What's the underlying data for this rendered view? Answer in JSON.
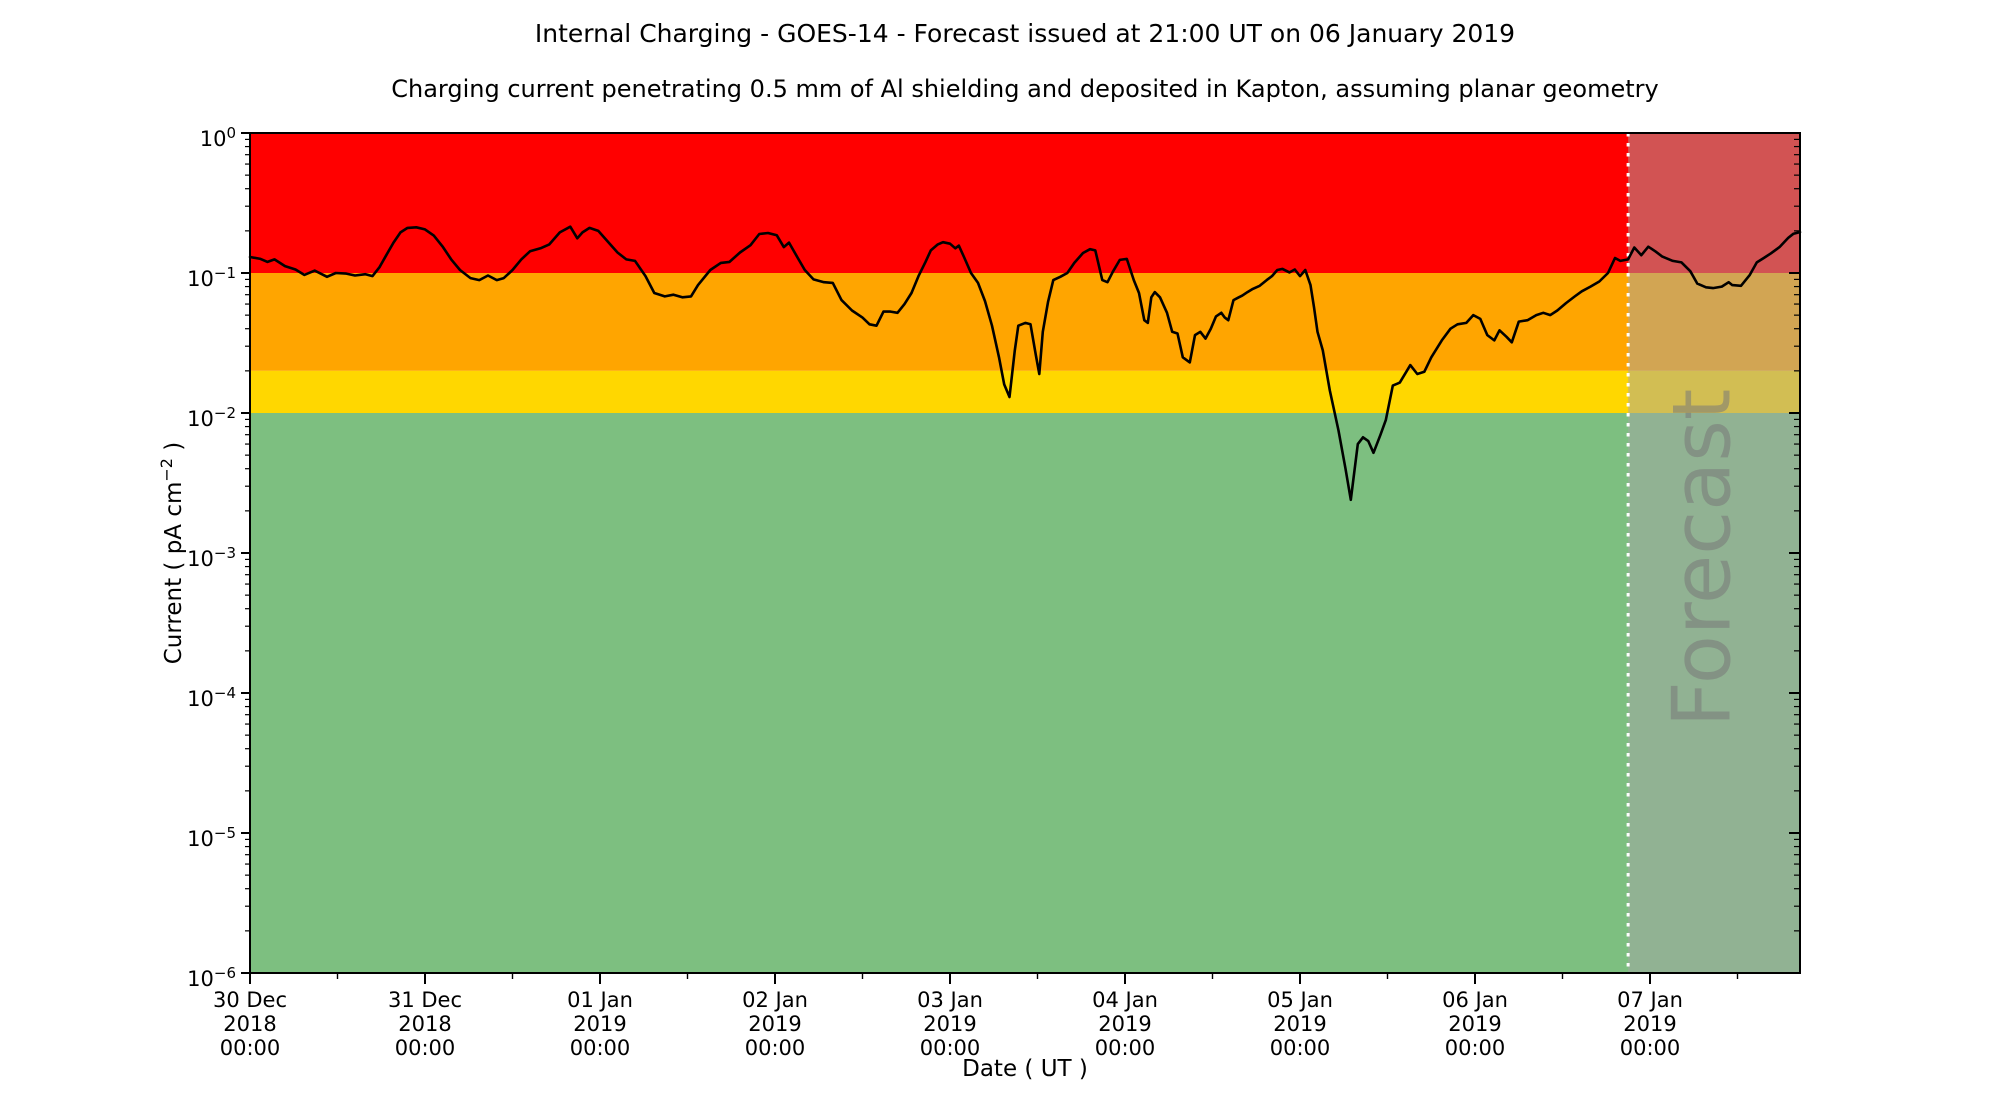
{
  "title": "Internal Charging - GOES-14 - Forecast issued at 21:00 UT on 06 January 2019",
  "subtitle": "Charging current penetrating 0.5 mm of Al shielding and deposited in Kapton, assuming planar geometry",
  "x_axis": {
    "label": "Date ( UT )",
    "ticks": [
      {
        "date": "30 Dec",
        "year": "2018",
        "time": "00:00"
      },
      {
        "date": "31 Dec",
        "year": "2018",
        "time": "00:00"
      },
      {
        "date": "01 Jan",
        "year": "2019",
        "time": "00:00"
      },
      {
        "date": "02 Jan",
        "year": "2019",
        "time": "00:00"
      },
      {
        "date": "03 Jan",
        "year": "2019",
        "time": "00:00"
      },
      {
        "date": "04 Jan",
        "year": "2019",
        "time": "00:00"
      },
      {
        "date": "05 Jan",
        "year": "2019",
        "time": "00:00"
      },
      {
        "date": "06 Jan",
        "year": "2019",
        "time": "00:00"
      },
      {
        "date": "07 Jan",
        "year": "2019",
        "time": "00:00"
      }
    ]
  },
  "y_axis": {
    "label_prefix": "Current ( pA cm",
    "label_sup": "−2",
    "label_suffix": " )",
    "label_plain": "Current ( pA cm⁻² )",
    "tick_exponents": [
      0,
      -1,
      -2,
      -3,
      -4,
      -5,
      -6
    ]
  },
  "bands": [
    {
      "name": "band-red-alert",
      "color": "#ff0000",
      "min": 0.1,
      "max": 1.0
    },
    {
      "name": "band-orange-warning",
      "color": "#ffa500",
      "min": 0.02,
      "max": 0.1
    },
    {
      "name": "band-yellow-caution",
      "color": "#ffd700",
      "min": 0.01,
      "max": 0.02
    },
    {
      "name": "band-green-quiet",
      "color": "#7dbf80",
      "min": 1e-06,
      "max": 0.01
    }
  ],
  "forecast": {
    "label": "Forecast",
    "start_day": 7.875,
    "start_label": "06 Jan 2019 21:00 UT",
    "overlay_color": "#a5a5a5",
    "overlay_opacity": 0.5,
    "divider_color": "#ffffff",
    "text_color": "#787878",
    "text_opacity": 0.55
  },
  "chart_data": {
    "type": "line",
    "title": "Internal Charging - GOES-14 - Forecast issued at 21:00 UT on 06 January 2019",
    "xlabel": "Date ( UT )",
    "ylabel": "Current ( pA cm^-2 )",
    "y_scale": "log",
    "ylim": [
      1e-06,
      1.0
    ],
    "x_unit": "days since 30 Dec 2018 00:00 UT",
    "x_start": "30 Dec 2018 00:00",
    "x_end_day": 8.857,
    "day_tick_labels": [
      "30 Dec 2018 00:00",
      "31 Dec 2018 00:00",
      "01 Jan 2019 00:00",
      "02 Jan 2019 00:00",
      "03 Jan 2019 00:00",
      "04 Jan 2019 00:00",
      "05 Jan 2019 00:00",
      "06 Jan 2019 00:00",
      "07 Jan 2019 00:00"
    ],
    "grid": false,
    "forecast_start_day": 7.875,
    "series": [
      {
        "name": "charging-current",
        "color": "#000000",
        "points": [
          [
            0.0,
            0.13
          ],
          [
            0.06,
            0.126
          ],
          [
            0.1,
            0.12
          ],
          [
            0.14,
            0.125
          ],
          [
            0.2,
            0.112
          ],
          [
            0.26,
            0.106
          ],
          [
            0.31,
            0.097
          ],
          [
            0.37,
            0.104
          ],
          [
            0.44,
            0.094
          ],
          [
            0.49,
            0.1
          ],
          [
            0.55,
            0.099
          ],
          [
            0.6,
            0.096
          ],
          [
            0.66,
            0.098
          ],
          [
            0.7,
            0.095
          ],
          [
            0.74,
            0.11
          ],
          [
            0.78,
            0.135
          ],
          [
            0.82,
            0.165
          ],
          [
            0.86,
            0.195
          ],
          [
            0.9,
            0.21
          ],
          [
            0.95,
            0.212
          ],
          [
            1.0,
            0.205
          ],
          [
            1.05,
            0.185
          ],
          [
            1.1,
            0.155
          ],
          [
            1.15,
            0.125
          ],
          [
            1.2,
            0.105
          ],
          [
            1.26,
            0.092
          ],
          [
            1.31,
            0.089
          ],
          [
            1.36,
            0.096
          ],
          [
            1.41,
            0.089
          ],
          [
            1.45,
            0.092
          ],
          [
            1.5,
            0.105
          ],
          [
            1.55,
            0.125
          ],
          [
            1.6,
            0.143
          ],
          [
            1.66,
            0.15
          ],
          [
            1.71,
            0.16
          ],
          [
            1.77,
            0.195
          ],
          [
            1.83,
            0.214
          ],
          [
            1.87,
            0.177
          ],
          [
            1.9,
            0.195
          ],
          [
            1.94,
            0.21
          ],
          [
            1.99,
            0.2
          ],
          [
            2.05,
            0.165
          ],
          [
            2.1,
            0.14
          ],
          [
            2.15,
            0.125
          ],
          [
            2.2,
            0.122
          ],
          [
            2.26,
            0.095
          ],
          [
            2.31,
            0.072
          ],
          [
            2.37,
            0.068
          ],
          [
            2.42,
            0.07
          ],
          [
            2.47,
            0.067
          ],
          [
            2.52,
            0.068
          ],
          [
            2.56,
            0.082
          ],
          [
            2.63,
            0.105
          ],
          [
            2.69,
            0.118
          ],
          [
            2.74,
            0.12
          ],
          [
            2.8,
            0.14
          ],
          [
            2.86,
            0.158
          ],
          [
            2.91,
            0.19
          ],
          [
            2.96,
            0.193
          ],
          [
            3.01,
            0.186
          ],
          [
            3.05,
            0.153
          ],
          [
            3.08,
            0.165
          ],
          [
            3.13,
            0.128
          ],
          [
            3.17,
            0.105
          ],
          [
            3.22,
            0.09
          ],
          [
            3.28,
            0.086
          ],
          [
            3.33,
            0.085
          ],
          [
            3.38,
            0.064
          ],
          [
            3.44,
            0.054
          ],
          [
            3.5,
            0.048
          ],
          [
            3.54,
            0.043
          ],
          [
            3.58,
            0.042
          ],
          [
            3.62,
            0.053
          ],
          [
            3.66,
            0.053
          ],
          [
            3.7,
            0.052
          ],
          [
            3.74,
            0.06
          ],
          [
            3.78,
            0.072
          ],
          [
            3.82,
            0.095
          ],
          [
            3.86,
            0.12
          ],
          [
            3.89,
            0.145
          ],
          [
            3.93,
            0.16
          ],
          [
            3.96,
            0.166
          ],
          [
            4.0,
            0.162
          ],
          [
            4.03,
            0.15
          ],
          [
            4.05,
            0.157
          ],
          [
            4.08,
            0.13
          ],
          [
            4.12,
            0.1
          ],
          [
            4.16,
            0.085
          ],
          [
            4.2,
            0.063
          ],
          [
            4.24,
            0.042
          ],
          [
            4.28,
            0.025
          ],
          [
            4.31,
            0.016
          ],
          [
            4.34,
            0.013
          ],
          [
            4.37,
            0.028
          ],
          [
            4.39,
            0.042
          ],
          [
            4.43,
            0.044
          ],
          [
            4.46,
            0.043
          ],
          [
            4.49,
            0.026
          ],
          [
            4.51,
            0.019
          ],
          [
            4.53,
            0.038
          ],
          [
            4.56,
            0.062
          ],
          [
            4.59,
            0.089
          ],
          [
            4.63,
            0.094
          ],
          [
            4.67,
            0.1
          ],
          [
            4.71,
            0.118
          ],
          [
            4.76,
            0.139
          ],
          [
            4.8,
            0.148
          ],
          [
            4.83,
            0.145
          ],
          [
            4.87,
            0.089
          ],
          [
            4.9,
            0.086
          ],
          [
            4.93,
            0.102
          ],
          [
            4.97,
            0.124
          ],
          [
            5.01,
            0.126
          ],
          [
            5.05,
            0.089
          ],
          [
            5.08,
            0.072
          ],
          [
            5.11,
            0.046
          ],
          [
            5.13,
            0.044
          ],
          [
            5.15,
            0.067
          ],
          [
            5.17,
            0.073
          ],
          [
            5.2,
            0.067
          ],
          [
            5.24,
            0.052
          ],
          [
            5.27,
            0.038
          ],
          [
            5.3,
            0.037
          ],
          [
            5.33,
            0.025
          ],
          [
            5.37,
            0.023
          ],
          [
            5.4,
            0.036
          ],
          [
            5.43,
            0.038
          ],
          [
            5.46,
            0.034
          ],
          [
            5.49,
            0.04
          ],
          [
            5.52,
            0.049
          ],
          [
            5.55,
            0.052
          ],
          [
            5.57,
            0.048
          ],
          [
            5.59,
            0.046
          ],
          [
            5.62,
            0.064
          ],
          [
            5.65,
            0.067
          ],
          [
            5.67,
            0.069
          ],
          [
            5.7,
            0.073
          ],
          [
            5.73,
            0.077
          ],
          [
            5.77,
            0.081
          ],
          [
            5.81,
            0.089
          ],
          [
            5.84,
            0.095
          ],
          [
            5.87,
            0.105
          ],
          [
            5.9,
            0.107
          ],
          [
            5.94,
            0.101
          ],
          [
            5.97,
            0.106
          ],
          [
            6.0,
            0.095
          ],
          [
            6.03,
            0.105
          ],
          [
            6.06,
            0.082
          ],
          [
            6.08,
            0.057
          ],
          [
            6.1,
            0.038
          ],
          [
            6.13,
            0.028
          ],
          [
            6.17,
            0.0145
          ],
          [
            6.22,
            0.0075
          ],
          [
            6.26,
            0.004
          ],
          [
            6.29,
            0.0024
          ],
          [
            6.33,
            0.006
          ],
          [
            6.36,
            0.0067
          ],
          [
            6.39,
            0.0063
          ],
          [
            6.42,
            0.0052
          ],
          [
            6.46,
            0.007
          ],
          [
            6.49,
            0.0089
          ],
          [
            6.53,
            0.0157
          ],
          [
            6.57,
            0.0165
          ],
          [
            6.61,
            0.02
          ],
          [
            6.63,
            0.022
          ],
          [
            6.67,
            0.019
          ],
          [
            6.71,
            0.0197
          ],
          [
            6.75,
            0.025
          ],
          [
            6.81,
            0.033
          ],
          [
            6.86,
            0.04
          ],
          [
            6.9,
            0.043
          ],
          [
            6.95,
            0.044
          ],
          [
            6.99,
            0.05
          ],
          [
            7.03,
            0.047
          ],
          [
            7.07,
            0.036
          ],
          [
            7.11,
            0.033
          ],
          [
            7.14,
            0.039
          ],
          [
            7.18,
            0.035
          ],
          [
            7.21,
            0.032
          ],
          [
            7.25,
            0.045
          ],
          [
            7.3,
            0.046
          ],
          [
            7.35,
            0.05
          ],
          [
            7.39,
            0.052
          ],
          [
            7.43,
            0.05
          ],
          [
            7.47,
            0.054
          ],
          [
            7.52,
            0.061
          ],
          [
            7.57,
            0.068
          ],
          [
            7.61,
            0.074
          ],
          [
            7.66,
            0.08
          ],
          [
            7.71,
            0.087
          ],
          [
            7.76,
            0.1
          ],
          [
            7.8,
            0.128
          ],
          [
            7.83,
            0.122
          ],
          [
            7.875,
            0.125
          ],
          [
            7.91,
            0.152
          ],
          [
            7.95,
            0.134
          ],
          [
            7.99,
            0.154
          ],
          [
            8.03,
            0.143
          ],
          [
            8.07,
            0.131
          ],
          [
            8.13,
            0.122
          ],
          [
            8.18,
            0.119
          ],
          [
            8.23,
            0.103
          ],
          [
            8.27,
            0.084
          ],
          [
            8.32,
            0.079
          ],
          [
            8.36,
            0.078
          ],
          [
            8.41,
            0.08
          ],
          [
            8.45,
            0.086
          ],
          [
            8.47,
            0.082
          ],
          [
            8.52,
            0.081
          ],
          [
            8.57,
            0.097
          ],
          [
            8.61,
            0.119
          ],
          [
            8.65,
            0.128
          ],
          [
            8.69,
            0.138
          ],
          [
            8.74,
            0.153
          ],
          [
            8.79,
            0.178
          ],
          [
            8.82,
            0.191
          ],
          [
            8.857,
            0.196
          ]
        ]
      }
    ]
  }
}
